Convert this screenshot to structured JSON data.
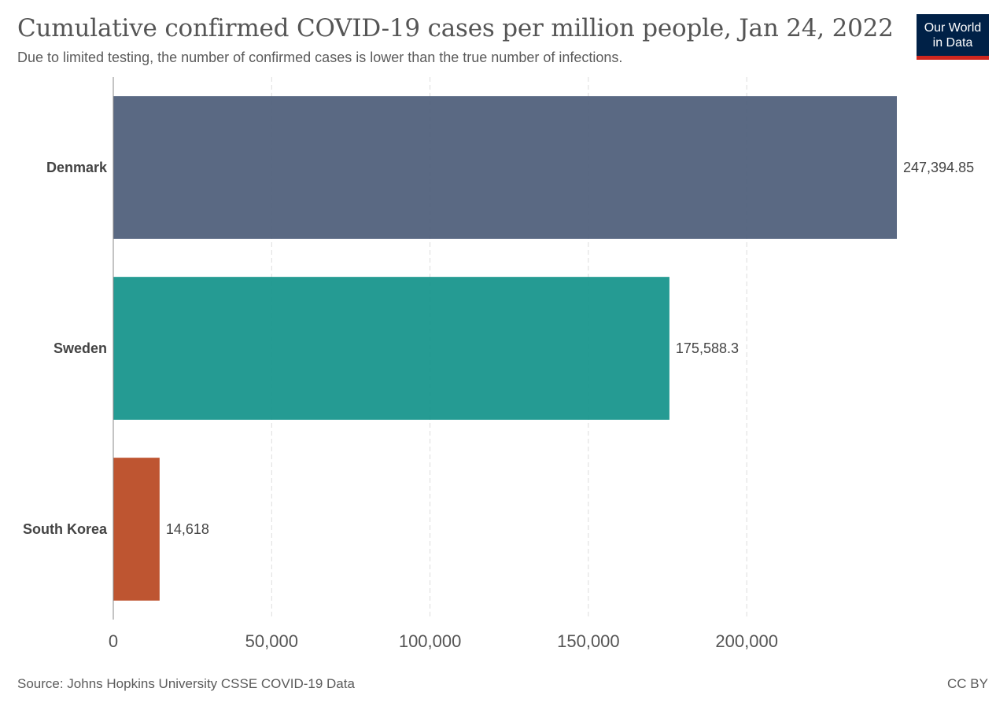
{
  "header": {
    "title": "Cumulative confirmed COVID-19 cases per million people, Jan 24, 2022",
    "subtitle": "Due to limited testing, the number of confirmed cases is lower than the true number of infections.",
    "logo_line1": "Our World",
    "logo_line2": "in Data"
  },
  "footer": {
    "source": "Source: Johns Hopkins University CSSE COVID-19 Data",
    "license": "CC BY"
  },
  "colors": {
    "logo_bg": "#002147",
    "logo_accent": "#ce261e"
  },
  "chart_data": {
    "type": "bar",
    "orientation": "horizontal",
    "categories": [
      "Denmark",
      "Sweden",
      "South Korea"
    ],
    "values": [
      247394.85,
      175588.3,
      14618
    ],
    "value_labels": [
      "247,394.85",
      "175,588.3",
      "14,618"
    ],
    "colors": [
      "#4c5c78",
      "#12928a",
      "#b8461f"
    ],
    "xticks": [
      0,
      50000,
      100000,
      150000,
      200000
    ],
    "xtick_labels": [
      "0",
      "50,000",
      "100,000",
      "150,000",
      "200,000"
    ],
    "xlim": [
      0,
      247394.85
    ],
    "grid": "vertical dashed"
  }
}
